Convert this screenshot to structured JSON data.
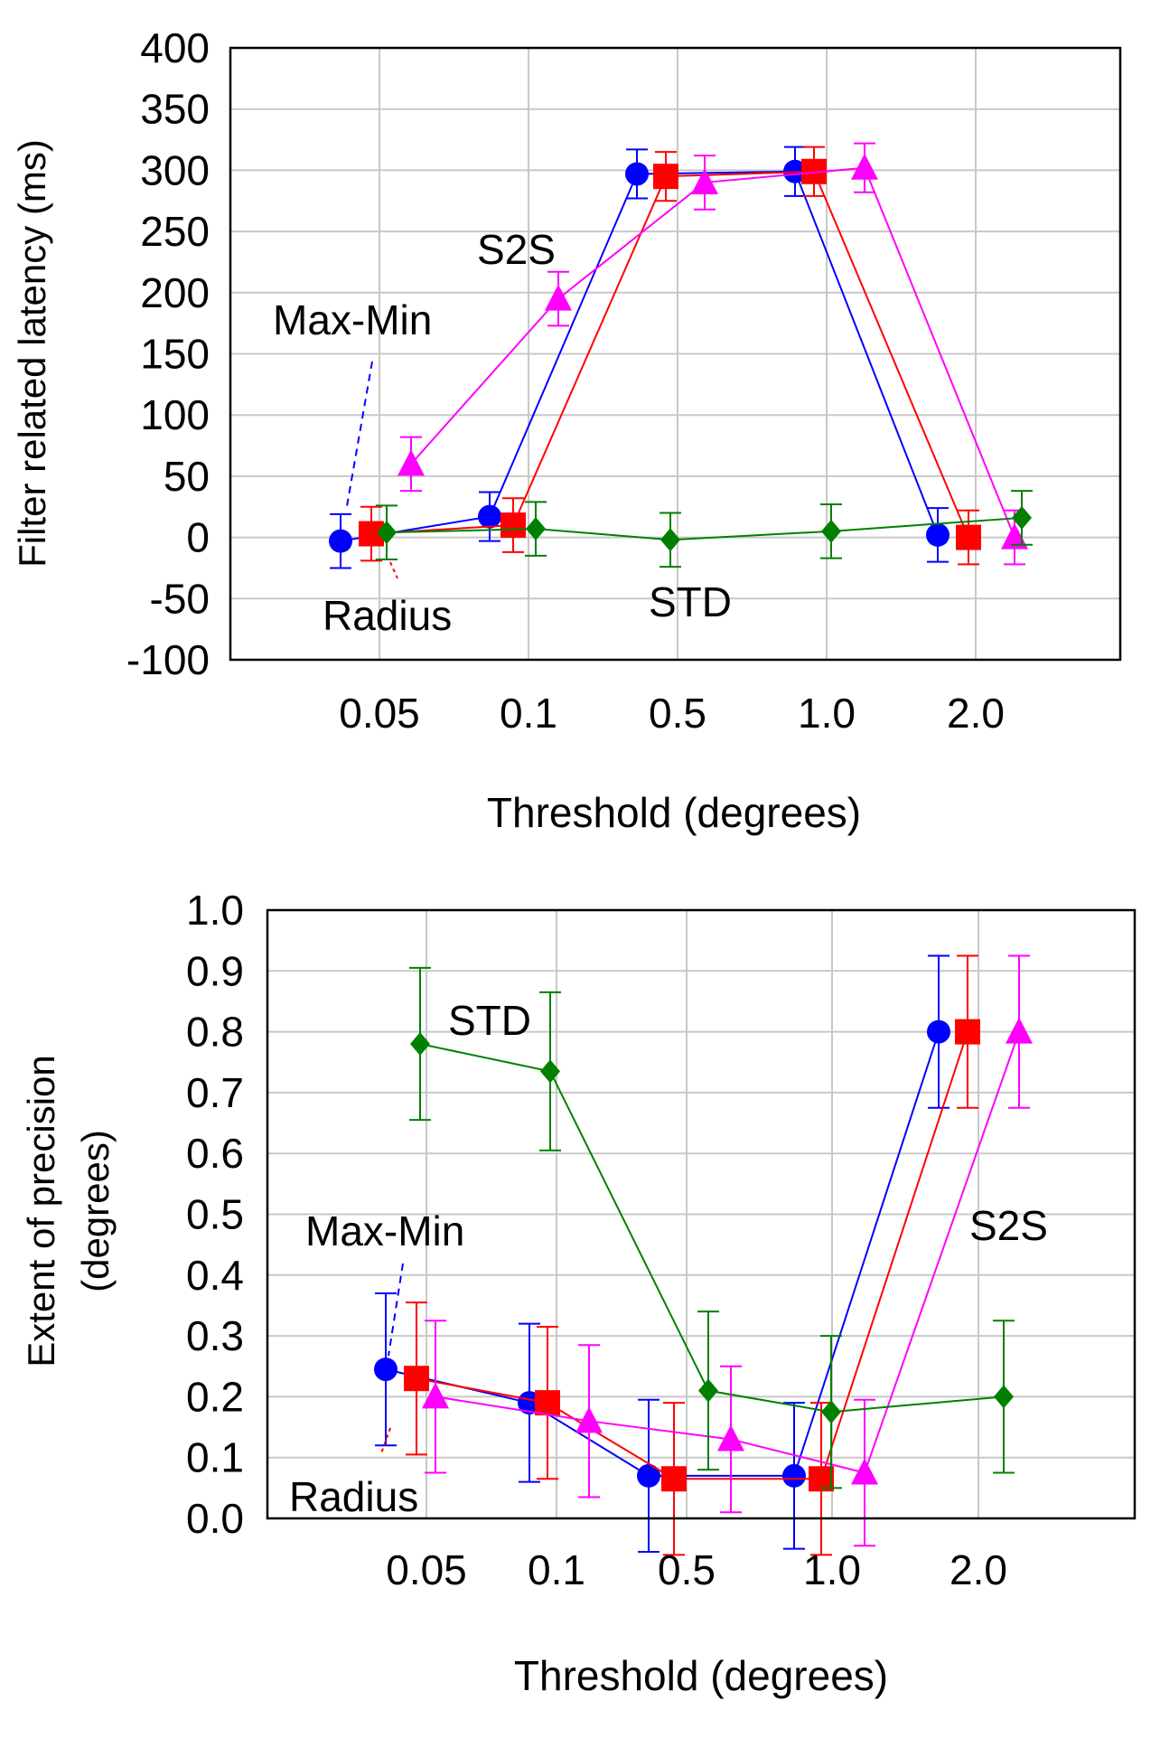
{
  "chart_data": [
    {
      "type": "line",
      "xlabel": "Threshold (degrees)",
      "ylabel": "Filter related latency (ms)",
      "categories": [
        "0.05",
        "0.1",
        "0.5",
        "1.0",
        "2.0"
      ],
      "ylim": [
        -100,
        400
      ],
      "yticks": [
        "400",
        "350",
        "300",
        "250",
        "200",
        "150",
        "100",
        "50",
        "0",
        "-50",
        "-100"
      ],
      "grid": true,
      "series": [
        {
          "name": "",
          "color": "#0000ff",
          "marker": "circle",
          "values": [
            -3,
            17,
            297,
            299,
            2
          ],
          "err": [
            22,
            20,
            20,
            20,
            22
          ]
        },
        {
          "name": "",
          "color": "#ff0000",
          "marker": "square",
          "values": [
            3,
            10,
            295,
            299,
            0
          ],
          "err": [
            22,
            22,
            20,
            20,
            22
          ]
        },
        {
          "name": "",
          "color": "#ff00ff",
          "marker": "triangle",
          "values": [
            60,
            195,
            290,
            302,
            0
          ],
          "err": [
            22,
            22,
            22,
            20,
            22
          ]
        },
        {
          "name": "",
          "color": "#008000",
          "marker": "diamond",
          "values": [
            4,
            7,
            -2,
            5,
            16
          ],
          "err": [
            22,
            22,
            22,
            22,
            22
          ]
        }
      ],
      "annotations": [
        "S2S",
        "Max-Min",
        "Radius",
        "STD"
      ]
    },
    {
      "type": "line",
      "xlabel": "Threshold (degrees)",
      "ylabel": [
        "Extent of precision",
        "(degrees)"
      ],
      "categories": [
        "0.05",
        "0.1",
        "0.5",
        "1.0",
        "2.0"
      ],
      "ylim": [
        0.0,
        1.0
      ],
      "yticks": [
        "1.0",
        "0.9",
        "0.8",
        "0.7",
        "0.6",
        "0.5",
        "0.4",
        "0.3",
        "0.2",
        "0.1",
        "0.0"
      ],
      "grid": true,
      "series": [
        {
          "name": "",
          "color": "#0000ff",
          "marker": "circle",
          "values": [
            0.245,
            0.19,
            0.07,
            0.07,
            0.8
          ],
          "err": [
            0.125,
            0.13,
            0.125,
            0.12,
            0.125
          ]
        },
        {
          "name": "",
          "color": "#ff0000",
          "marker": "square",
          "values": [
            0.23,
            0.19,
            0.065,
            0.065,
            0.8
          ],
          "err": [
            0.125,
            0.125,
            0.125,
            0.125,
            0.125
          ]
        },
        {
          "name": "",
          "color": "#ff00ff",
          "marker": "triangle",
          "values": [
            0.2,
            0.16,
            0.13,
            0.075,
            0.8
          ],
          "err": [
            0.125,
            0.125,
            0.12,
            0.12,
            0.125
          ]
        },
        {
          "name": "",
          "color": "#008000",
          "marker": "diamond",
          "values": [
            0.78,
            0.735,
            0.21,
            0.175,
            0.2
          ],
          "err": [
            0.125,
            0.13,
            0.13,
            0.125,
            0.125
          ]
        }
      ],
      "annotations": [
        "STD",
        "Max-Min",
        "S2S",
        "Radius"
      ]
    }
  ]
}
